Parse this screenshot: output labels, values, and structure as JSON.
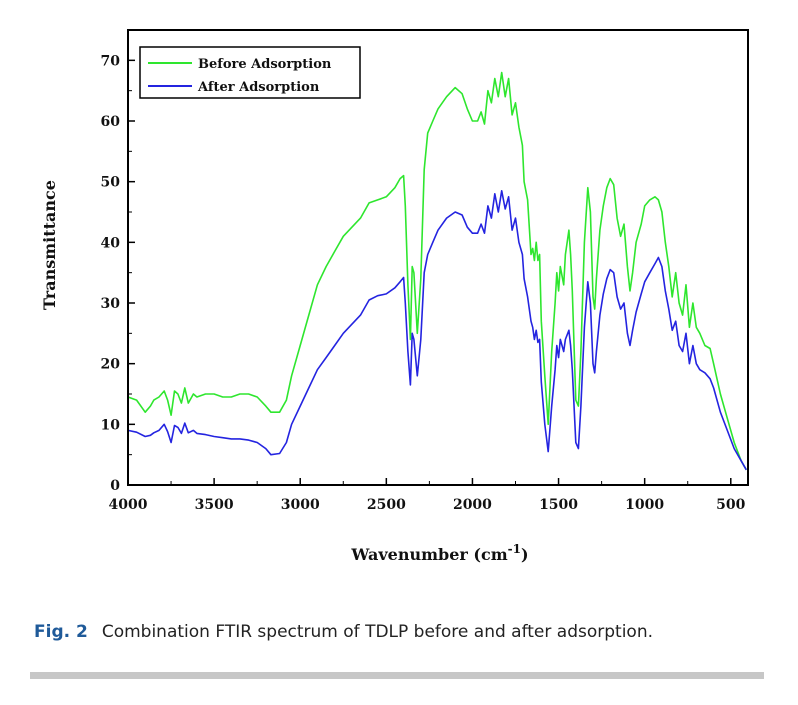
{
  "figure": {
    "label": "Fig. 2",
    "caption": "Combination FTIR spectrum of TDLP before and after adsorption."
  },
  "chart_data": {
    "type": "line",
    "xlabel": "Wavenumber (cm",
    "xlabel_sup": "-1",
    "xlabel_close": ")",
    "ylabel": "Transmittance",
    "xlim": [
      4000,
      400
    ],
    "ylim": [
      0,
      75
    ],
    "x_reversed": true,
    "x_ticks": [
      4000,
      3500,
      3000,
      2500,
      2000,
      1500,
      1000,
      500
    ],
    "y_ticks": [
      0,
      10,
      20,
      30,
      40,
      50,
      60,
      70
    ],
    "legend_position": "top-left",
    "series": [
      {
        "name": "Before Adsorption",
        "color": "#2ee62e",
        "points": [
          [
            4000,
            14.5
          ],
          [
            3950,
            14
          ],
          [
            3900,
            12
          ],
          [
            3870,
            13
          ],
          [
            3850,
            14
          ],
          [
            3820,
            14.5
          ],
          [
            3790,
            15.5
          ],
          [
            3770,
            14
          ],
          [
            3750,
            11.5
          ],
          [
            3730,
            15.5
          ],
          [
            3710,
            15
          ],
          [
            3690,
            13.5
          ],
          [
            3670,
            16
          ],
          [
            3650,
            13.5
          ],
          [
            3620,
            15
          ],
          [
            3600,
            14.5
          ],
          [
            3550,
            15
          ],
          [
            3500,
            15
          ],
          [
            3450,
            14.5
          ],
          [
            3400,
            14.5
          ],
          [
            3350,
            15
          ],
          [
            3300,
            15
          ],
          [
            3250,
            14.5
          ],
          [
            3200,
            13
          ],
          [
            3170,
            12
          ],
          [
            3120,
            12
          ],
          [
            3080,
            14
          ],
          [
            3050,
            18
          ],
          [
            3000,
            23
          ],
          [
            2950,
            28
          ],
          [
            2900,
            33
          ],
          [
            2850,
            36
          ],
          [
            2800,
            38.5
          ],
          [
            2750,
            41
          ],
          [
            2700,
            42.5
          ],
          [
            2650,
            44
          ],
          [
            2600,
            46.5
          ],
          [
            2550,
            47
          ],
          [
            2500,
            47.5
          ],
          [
            2450,
            49
          ],
          [
            2420,
            50.5
          ],
          [
            2400,
            51
          ],
          [
            2390,
            46
          ],
          [
            2375,
            33
          ],
          [
            2360,
            24
          ],
          [
            2350,
            36
          ],
          [
            2340,
            35
          ],
          [
            2320,
            25
          ],
          [
            2300,
            34
          ],
          [
            2280,
            52
          ],
          [
            2260,
            58
          ],
          [
            2230,
            60
          ],
          [
            2200,
            62
          ],
          [
            2150,
            64
          ],
          [
            2100,
            65.5
          ],
          [
            2060,
            64.5
          ],
          [
            2030,
            62
          ],
          [
            2000,
            60
          ],
          [
            1970,
            60
          ],
          [
            1950,
            61.5
          ],
          [
            1930,
            59.5
          ],
          [
            1910,
            65
          ],
          [
            1890,
            63
          ],
          [
            1870,
            67
          ],
          [
            1850,
            64
          ],
          [
            1830,
            68
          ],
          [
            1810,
            64
          ],
          [
            1790,
            67
          ],
          [
            1770,
            61
          ],
          [
            1750,
            63
          ],
          [
            1730,
            59
          ],
          [
            1710,
            56
          ],
          [
            1700,
            50
          ],
          [
            1680,
            47
          ],
          [
            1660,
            38
          ],
          [
            1650,
            39
          ],
          [
            1640,
            37
          ],
          [
            1630,
            40
          ],
          [
            1620,
            37
          ],
          [
            1610,
            38
          ],
          [
            1600,
            27
          ],
          [
            1580,
            18
          ],
          [
            1560,
            10
          ],
          [
            1540,
            22
          ],
          [
            1520,
            30
          ],
          [
            1510,
            35
          ],
          [
            1500,
            32
          ],
          [
            1490,
            36
          ],
          [
            1470,
            33
          ],
          [
            1460,
            38
          ],
          [
            1440,
            42
          ],
          [
            1430,
            38
          ],
          [
            1420,
            32
          ],
          [
            1400,
            14
          ],
          [
            1385,
            13
          ],
          [
            1370,
            22
          ],
          [
            1350,
            40
          ],
          [
            1330,
            49
          ],
          [
            1315,
            45
          ],
          [
            1300,
            31
          ],
          [
            1290,
            29
          ],
          [
            1280,
            34
          ],
          [
            1260,
            42
          ],
          [
            1240,
            46
          ],
          [
            1220,
            49
          ],
          [
            1200,
            50.5
          ],
          [
            1180,
            49.5
          ],
          [
            1160,
            44
          ],
          [
            1140,
            41
          ],
          [
            1120,
            43
          ],
          [
            1100,
            36
          ],
          [
            1085,
            32
          ],
          [
            1070,
            35
          ],
          [
            1050,
            40
          ],
          [
            1020,
            43
          ],
          [
            1000,
            46
          ],
          [
            970,
            47
          ],
          [
            940,
            47.5
          ],
          [
            920,
            47
          ],
          [
            900,
            45
          ],
          [
            880,
            40
          ],
          [
            860,
            36
          ],
          [
            840,
            31
          ],
          [
            820,
            35
          ],
          [
            800,
            30
          ],
          [
            780,
            28
          ],
          [
            760,
            33
          ],
          [
            740,
            26
          ],
          [
            720,
            30
          ],
          [
            700,
            26
          ],
          [
            680,
            25
          ],
          [
            650,
            23
          ],
          [
            620,
            22.5
          ],
          [
            600,
            20
          ],
          [
            560,
            15
          ],
          [
            520,
            11
          ],
          [
            480,
            7
          ],
          [
            440,
            4
          ],
          [
            410,
            2.5
          ]
        ]
      },
      {
        "name": "After Adsorption",
        "color": "#2424e0",
        "points": [
          [
            4000,
            9
          ],
          [
            3950,
            8.7
          ],
          [
            3900,
            8
          ],
          [
            3870,
            8.2
          ],
          [
            3850,
            8.6
          ],
          [
            3820,
            9
          ],
          [
            3790,
            10
          ],
          [
            3770,
            8.8
          ],
          [
            3750,
            7
          ],
          [
            3730,
            9.8
          ],
          [
            3710,
            9.5
          ],
          [
            3690,
            8.5
          ],
          [
            3670,
            10.2
          ],
          [
            3650,
            8.6
          ],
          [
            3620,
            9
          ],
          [
            3600,
            8.5
          ],
          [
            3550,
            8.3
          ],
          [
            3500,
            8
          ],
          [
            3450,
            7.8
          ],
          [
            3400,
            7.6
          ],
          [
            3350,
            7.6
          ],
          [
            3300,
            7.4
          ],
          [
            3250,
            7
          ],
          [
            3200,
            6
          ],
          [
            3170,
            5
          ],
          [
            3120,
            5.2
          ],
          [
            3080,
            7
          ],
          [
            3050,
            10
          ],
          [
            3000,
            13
          ],
          [
            2950,
            16
          ],
          [
            2900,
            19
          ],
          [
            2850,
            21
          ],
          [
            2800,
            23
          ],
          [
            2750,
            25
          ],
          [
            2700,
            26.5
          ],
          [
            2650,
            28
          ],
          [
            2600,
            30.5
          ],
          [
            2550,
            31.2
          ],
          [
            2500,
            31.5
          ],
          [
            2450,
            32.5
          ],
          [
            2420,
            33.5
          ],
          [
            2400,
            34.2
          ],
          [
            2390,
            30
          ],
          [
            2375,
            22
          ],
          [
            2360,
            16.5
          ],
          [
            2350,
            25
          ],
          [
            2340,
            24
          ],
          [
            2320,
            18
          ],
          [
            2300,
            24
          ],
          [
            2280,
            35
          ],
          [
            2260,
            38
          ],
          [
            2230,
            40
          ],
          [
            2200,
            42
          ],
          [
            2150,
            44
          ],
          [
            2100,
            45
          ],
          [
            2060,
            44.5
          ],
          [
            2030,
            42.5
          ],
          [
            2000,
            41.5
          ],
          [
            1970,
            41.5
          ],
          [
            1950,
            43
          ],
          [
            1930,
            41.5
          ],
          [
            1910,
            46
          ],
          [
            1890,
            44
          ],
          [
            1870,
            48
          ],
          [
            1850,
            45
          ],
          [
            1830,
            48.5
          ],
          [
            1810,
            45.5
          ],
          [
            1790,
            47.5
          ],
          [
            1770,
            42
          ],
          [
            1750,
            44
          ],
          [
            1730,
            40
          ],
          [
            1710,
            38
          ],
          [
            1700,
            34
          ],
          [
            1680,
            31
          ],
          [
            1660,
            27
          ],
          [
            1650,
            26
          ],
          [
            1640,
            24
          ],
          [
            1630,
            25.5
          ],
          [
            1620,
            23.5
          ],
          [
            1610,
            24
          ],
          [
            1600,
            17
          ],
          [
            1580,
            10
          ],
          [
            1560,
            5.5
          ],
          [
            1540,
            13
          ],
          [
            1520,
            19
          ],
          [
            1510,
            23
          ],
          [
            1500,
            21
          ],
          [
            1490,
            24
          ],
          [
            1470,
            22
          ],
          [
            1460,
            24
          ],
          [
            1440,
            25.5
          ],
          [
            1430,
            23
          ],
          [
            1420,
            19
          ],
          [
            1400,
            7
          ],
          [
            1385,
            6
          ],
          [
            1370,
            13
          ],
          [
            1350,
            26
          ],
          [
            1330,
            33.5
          ],
          [
            1315,
            30
          ],
          [
            1300,
            20
          ],
          [
            1290,
            18.5
          ],
          [
            1280,
            22
          ],
          [
            1260,
            28
          ],
          [
            1240,
            31.5
          ],
          [
            1220,
            34
          ],
          [
            1200,
            35.5
          ],
          [
            1180,
            35
          ],
          [
            1160,
            31
          ],
          [
            1140,
            29
          ],
          [
            1120,
            30
          ],
          [
            1100,
            25
          ],
          [
            1085,
            23
          ],
          [
            1070,
            25.5
          ],
          [
            1050,
            28.5
          ],
          [
            1020,
            31.5
          ],
          [
            1000,
            33.5
          ],
          [
            970,
            35
          ],
          [
            940,
            36.5
          ],
          [
            920,
            37.5
          ],
          [
            900,
            36
          ],
          [
            880,
            32
          ],
          [
            860,
            29
          ],
          [
            840,
            25.5
          ],
          [
            820,
            27
          ],
          [
            800,
            23
          ],
          [
            780,
            22
          ],
          [
            760,
            25
          ],
          [
            740,
            20
          ],
          [
            720,
            23
          ],
          [
            700,
            20
          ],
          [
            680,
            19
          ],
          [
            650,
            18.5
          ],
          [
            620,
            17.5
          ],
          [
            600,
            16
          ],
          [
            560,
            12
          ],
          [
            520,
            9
          ],
          [
            480,
            6
          ],
          [
            440,
            4
          ],
          [
            410,
            2.5
          ]
        ]
      }
    ]
  }
}
